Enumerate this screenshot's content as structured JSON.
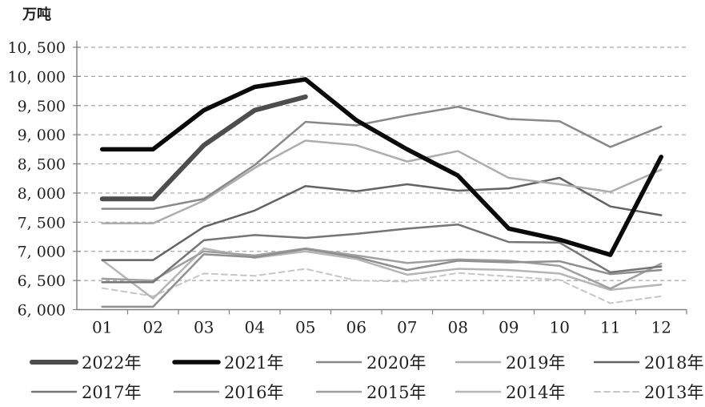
{
  "chart_data": {
    "type": "line",
    "title": "",
    "unit": "万吨",
    "xlabel": "",
    "ylabel": "万吨",
    "x_categories": [
      "01",
      "02",
      "03",
      "04",
      "05",
      "06",
      "07",
      "08",
      "09",
      "10",
      "11",
      "12"
    ],
    "ylim": [
      6000,
      10500
    ],
    "y_step": 500,
    "grid": "horizontal-dashed",
    "legend_position": "bottom-two-rows",
    "y_ticks": [
      {
        "value": 10500,
        "label": "10, 500"
      },
      {
        "value": 10000,
        "label": "10, 000"
      },
      {
        "value": 9500,
        "label": "9, 500"
      },
      {
        "value": 9000,
        "label": "9, 000"
      },
      {
        "value": 8500,
        "label": "8, 500"
      },
      {
        "value": 8000,
        "label": "8, 000"
      },
      {
        "value": 7500,
        "label": "7, 500"
      },
      {
        "value": 7000,
        "label": "7, 000"
      },
      {
        "value": 6500,
        "label": "6, 500"
      },
      {
        "value": 6000,
        "label": "6, 000"
      }
    ],
    "series": [
      {
        "name": "2022年",
        "color": "#4d4d4d",
        "width": 6,
        "dash": "",
        "values": [
          7900,
          7900,
          8820,
          9420,
          9650,
          null,
          null,
          null,
          null,
          null,
          null,
          null
        ]
      },
      {
        "name": "2021年",
        "color": "#0a0a0a",
        "width": 5.5,
        "dash": "",
        "values": [
          8750,
          8750,
          9420,
          9820,
          9950,
          9250,
          8750,
          8300,
          7390,
          7200,
          6940,
          8620
        ]
      },
      {
        "name": "2020年",
        "color": "#898989",
        "width": 2.5,
        "dash": "",
        "values": [
          7730,
          7730,
          7900,
          8480,
          9220,
          9160,
          9330,
          9480,
          9270,
          9230,
          8790,
          9140
        ]
      },
      {
        "name": "2019年",
        "color": "#adadad",
        "width": 2.5,
        "dash": "",
        "values": [
          7480,
          7480,
          7870,
          8430,
          8900,
          8820,
          8540,
          8720,
          8260,
          8150,
          8020,
          8400
        ]
      },
      {
        "name": "2018年",
        "color": "#636363",
        "width": 2.5,
        "dash": "",
        "values": [
          6850,
          6850,
          7420,
          7700,
          8120,
          8030,
          8150,
          8040,
          8080,
          8260,
          7770,
          7620
        ]
      },
      {
        "name": "2017年",
        "color": "#757575",
        "width": 2.5,
        "dash": "",
        "values": [
          6470,
          6470,
          7190,
          7280,
          7230,
          7300,
          7390,
          7460,
          7160,
          7150,
          6640,
          6740
        ]
      },
      {
        "name": "2016年",
        "color": "#8f8f8f",
        "width": 2.5,
        "dash": "",
        "values": [
          6050,
          6050,
          6950,
          6900,
          7040,
          6900,
          6680,
          6840,
          6810,
          6830,
          6610,
          6680
        ]
      },
      {
        "name": "2015年",
        "color": "#9f9f9f",
        "width": 2.5,
        "dash": "",
        "values": [
          6530,
          6500,
          7000,
          6930,
          7050,
          6930,
          6800,
          6860,
          6840,
          6750,
          6360,
          6790
        ]
      },
      {
        "name": "2014年",
        "color": "#b5b5b5",
        "width": 2.5,
        "dash": "",
        "values": [
          6850,
          6190,
          7050,
          6890,
          7000,
          6870,
          6600,
          6700,
          6680,
          6620,
          6340,
          6430
        ]
      },
      {
        "name": "2013年",
        "color": "#c6c6c6",
        "width": 2,
        "dash": "7 5",
        "values": [
          6370,
          6230,
          6620,
          6580,
          6700,
          6500,
          6480,
          6630,
          6570,
          6510,
          6110,
          6230
        ]
      }
    ],
    "draw_order": [
      "2013年",
      "2014年",
      "2015年",
      "2016年",
      "2017年",
      "2018年",
      "2019年",
      "2020年",
      "2022年",
      "2021年"
    ],
    "axis_color": "#808080",
    "grid_color": "#a6a6a6"
  }
}
